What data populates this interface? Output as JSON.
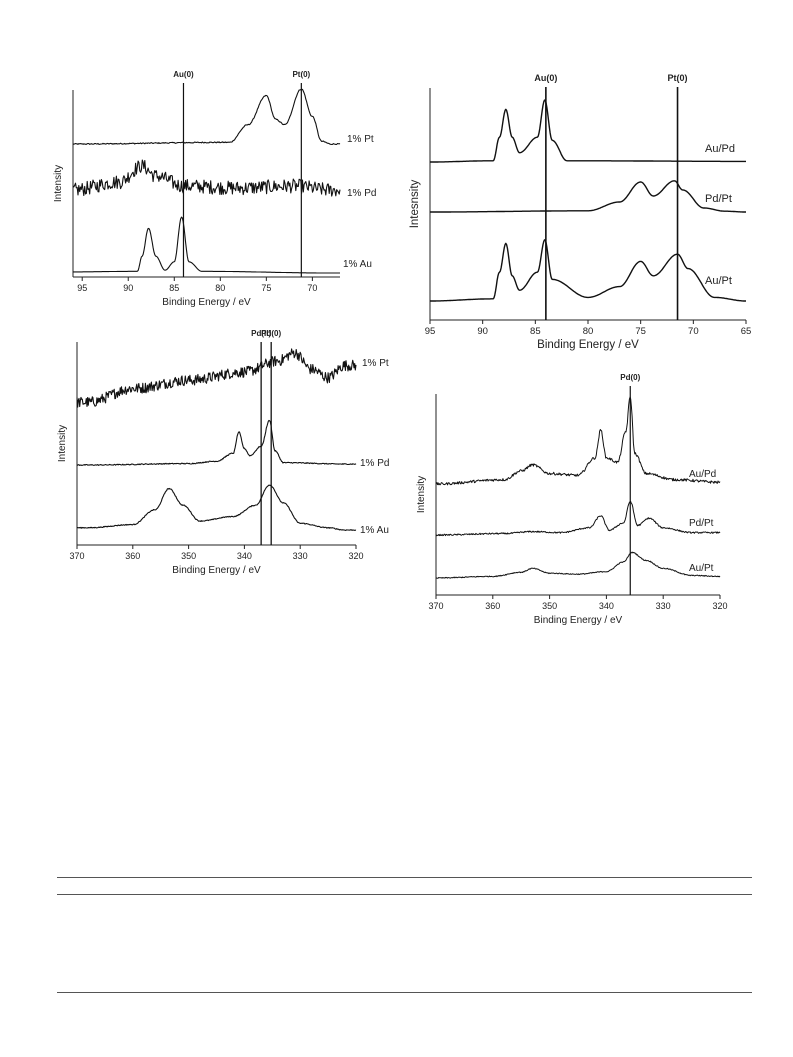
{
  "chart_data": [
    {
      "type": "line",
      "xlabel": "Binding Energy / eV",
      "ylabel": "Intensity",
      "xlim": [
        96,
        67
      ],
      "ticks": [
        95,
        90,
        85,
        80,
        75,
        70
      ],
      "refs": [
        {
          "label": "Au(0)",
          "x": 84
        },
        {
          "label": "Pt(0)",
          "x": 71.2
        }
      ],
      "series": [
        {
          "name": "1% Pt",
          "profile": [
            [
              96,
              0
            ],
            [
              79,
              0.03
            ],
            [
              77,
              0.35
            ],
            [
              75,
              0.88
            ],
            [
              74,
              0.45
            ],
            [
              73,
              0.35
            ],
            [
              71.2,
              1
            ],
            [
              70,
              0.5
            ],
            [
              69,
              0.05
            ],
            [
              68,
              0
            ]
          ],
          "noise": 0.02
        },
        {
          "name": "1% Pd",
          "profile": [
            [
              96,
              0.25
            ],
            [
              91,
              0.45
            ],
            [
              88.5,
              0.85
            ],
            [
              87,
              0.6
            ],
            [
              84,
              0.35
            ],
            [
              78,
              0.3
            ],
            [
              72,
              0.35
            ],
            [
              68,
              0.25
            ]
          ],
          "noise": 0.35
        },
        {
          "name": "1% Au",
          "profile": [
            [
              96,
              0.02
            ],
            [
              89,
              0.03
            ],
            [
              88.5,
              0.3
            ],
            [
              87.8,
              0.8
            ],
            [
              87,
              0.3
            ],
            [
              86,
              0.05
            ],
            [
              85,
              0.2
            ],
            [
              84.2,
              1
            ],
            [
              83.4,
              0.2
            ],
            [
              82,
              0.03
            ],
            [
              68,
              0
            ]
          ],
          "noise": 0.01
        }
      ]
    },
    {
      "type": "line",
      "xlabel": "Binding Energy / eV",
      "ylabel": "Intesnsity",
      "xlim": [
        95,
        65
      ],
      "ticks": [
        95,
        90,
        85,
        80,
        75,
        70,
        65
      ],
      "refs": [
        {
          "label": "Au(0)",
          "x": 84
        },
        {
          "label": "Pt(0)",
          "x": 71.5
        }
      ],
      "series": [
        {
          "name": "Au/Pd",
          "profile": [
            [
              95,
              0
            ],
            [
              89,
              0.02
            ],
            [
              88.4,
              0.4
            ],
            [
              87.8,
              0.85
            ],
            [
              87.2,
              0.4
            ],
            [
              86.5,
              0.15
            ],
            [
              84.8,
              0.4
            ],
            [
              84.1,
              1
            ],
            [
              83.4,
              0.35
            ],
            [
              82,
              0.02
            ],
            [
              65,
              0.01
            ]
          ],
          "noise": 0.004
        },
        {
          "name": "Pd/Pt",
          "profile": [
            [
              95,
              0
            ],
            [
              80,
              0.03
            ],
            [
              77,
              0.25
            ],
            [
              75,
              0.75
            ],
            [
              73.8,
              0.4
            ],
            [
              71.8,
              0.78
            ],
            [
              71,
              0.55
            ],
            [
              69,
              0.1
            ],
            [
              67,
              0.02
            ],
            [
              65,
              0
            ]
          ],
          "noise": 0.004
        },
        {
          "name": "Au/Pt",
          "profile": [
            [
              95,
              0
            ],
            [
              89,
              0.03
            ],
            [
              88.4,
              0.4
            ],
            [
              87.8,
              0.8
            ],
            [
              87.2,
              0.35
            ],
            [
              86.5,
              0.15
            ],
            [
              84.8,
              0.4
            ],
            [
              84.1,
              0.85
            ],
            [
              83.4,
              0.3
            ],
            [
              80,
              0.05
            ],
            [
              77,
              0.2
            ],
            [
              75,
              0.55
            ],
            [
              73.8,
              0.35
            ],
            [
              71.5,
              0.65
            ],
            [
              70.5,
              0.45
            ],
            [
              68,
              0.05
            ],
            [
              65,
              0
            ]
          ],
          "noise": 0.004
        }
      ]
    },
    {
      "type": "line",
      "xlabel": "Binding Energy / eV",
      "ylabel": "Intensity",
      "xlim": [
        370,
        320
      ],
      "ticks": [
        370,
        360,
        350,
        340,
        330,
        320
      ],
      "refs": [
        {
          "label": "Pd(II)",
          "x": 337
        },
        {
          "label": "Pd(0)",
          "x": 335.2
        }
      ],
      "series": [
        {
          "name": "1% Pt",
          "profile": [
            [
              368,
              0.05
            ],
            [
              360,
              0.3
            ],
            [
              350,
              0.45
            ],
            [
              340,
              0.6
            ],
            [
              334,
              0.8
            ],
            [
              331,
              0.95
            ],
            [
              328,
              0.65
            ],
            [
              325,
              0.5
            ],
            [
              322,
              0.72
            ]
          ],
          "noise": 0.2
        },
        {
          "name": "1% Pd",
          "profile": [
            [
              368,
              0
            ],
            [
              350,
              0.03
            ],
            [
              345,
              0.08
            ],
            [
              342,
              0.25
            ],
            [
              341,
              0.7
            ],
            [
              340,
              0.35
            ],
            [
              339,
              0.2
            ],
            [
              337,
              0.4
            ],
            [
              335.5,
              0.95
            ],
            [
              334.5,
              0.3
            ],
            [
              333,
              0.05
            ],
            [
              322,
              0.02
            ]
          ],
          "noise": 0.02
        },
        {
          "name": "1% Au",
          "profile": [
            [
              368,
              0.05
            ],
            [
              360,
              0.12
            ],
            [
              356,
              0.45
            ],
            [
              353.5,
              0.92
            ],
            [
              351,
              0.55
            ],
            [
              348,
              0.2
            ],
            [
              342,
              0.3
            ],
            [
              338,
              0.55
            ],
            [
              335.5,
              1
            ],
            [
              333,
              0.6
            ],
            [
              330,
              0.15
            ],
            [
              325,
              0.05
            ],
            [
              322,
              0
            ]
          ],
          "noise": 0.02
        }
      ]
    },
    {
      "type": "line",
      "xlabel": "Binding Energy / eV",
      "ylabel": "Intensity",
      "xlim": [
        370,
        320
      ],
      "ticks": [
        370,
        360,
        350,
        340,
        330,
        320
      ],
      "refs": [
        {
          "label": "Pd(0)",
          "x": 335.8
        }
      ],
      "series": [
        {
          "name": "Au/Pd",
          "profile": [
            [
              370,
              0
            ],
            [
              358,
              0.05
            ],
            [
              355,
              0.15
            ],
            [
              353,
              0.22
            ],
            [
              350,
              0.12
            ],
            [
              345,
              0.1
            ],
            [
              342,
              0.3
            ],
            [
              341,
              0.62
            ],
            [
              340,
              0.3
            ],
            [
              338,
              0.25
            ],
            [
              336.6,
              0.6
            ],
            [
              335.8,
              1
            ],
            [
              335,
              0.35
            ],
            [
              333,
              0.12
            ],
            [
              328,
              0.05
            ],
            [
              320,
              0.02
            ]
          ],
          "noise": 0.03
        },
        {
          "name": "Pd/Pt",
          "profile": [
            [
              370,
              0
            ],
            [
              358,
              0.03
            ],
            [
              353,
              0.07
            ],
            [
              348,
              0.05
            ],
            [
              343,
              0.15
            ],
            [
              341,
              0.4
            ],
            [
              339.5,
              0.1
            ],
            [
              337,
              0.25
            ],
            [
              335.8,
              0.7
            ],
            [
              334.5,
              0.2
            ],
            [
              332.5,
              0.35
            ],
            [
              330,
              0.15
            ],
            [
              325,
              0.05
            ],
            [
              320,
              0.05
            ]
          ],
          "noise": 0.03
        },
        {
          "name": "Au/Pt",
          "profile": [
            [
              370,
              0
            ],
            [
              360,
              0.05
            ],
            [
              355,
              0.18
            ],
            [
              353,
              0.3
            ],
            [
              350,
              0.15
            ],
            [
              345,
              0.12
            ],
            [
              340,
              0.2
            ],
            [
              337,
              0.5
            ],
            [
              335.5,
              0.8
            ],
            [
              333,
              0.55
            ],
            [
              330,
              0.3
            ],
            [
              325,
              0.08
            ],
            [
              320,
              0.05
            ]
          ],
          "noise": 0.03
        }
      ]
    }
  ]
}
